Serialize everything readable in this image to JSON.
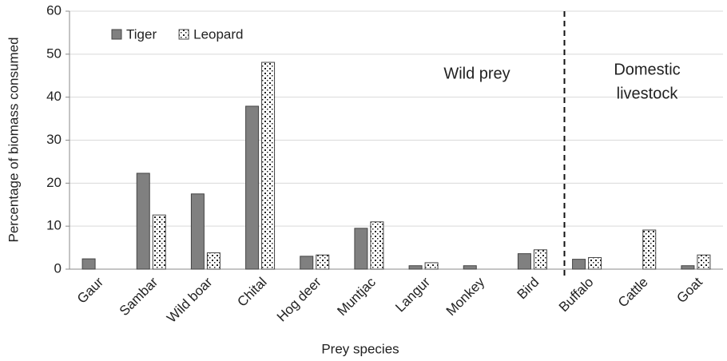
{
  "chart_data": {
    "type": "bar",
    "x_label": "Prey species",
    "y_label": "Percentage of biomass consumed",
    "categories": [
      "Gaur",
      "Sambar",
      "Wild boar",
      "Chital",
      "Hog deer",
      "Muntjac",
      "Langur",
      "Monkey",
      "Bird",
      "Buffalo",
      "Cattle",
      "Goat"
    ],
    "series": [
      {
        "name": "Tiger",
        "color": "#808080",
        "values": [
          2.4,
          22.3,
          17.5,
          37.9,
          3.0,
          9.5,
          0.8,
          0.8,
          3.6,
          2.3,
          null,
          0.8
        ]
      },
      {
        "name": "Leopard",
        "color": "#ffffff",
        "values": [
          null,
          12.6,
          3.8,
          48.1,
          3.3,
          11.0,
          1.5,
          null,
          4.5,
          2.7,
          9.1,
          3.3
        ]
      }
    ],
    "annotations": [
      {
        "lines": [
          "Wild prey"
        ]
      },
      {
        "lines": [
          "Domestic",
          "livestock"
        ]
      }
    ],
    "ylim": [
      0,
      60
    ],
    "yticks": [
      0,
      10,
      20,
      30,
      40,
      50,
      60
    ],
    "grid": true,
    "legend": "top-left"
  }
}
